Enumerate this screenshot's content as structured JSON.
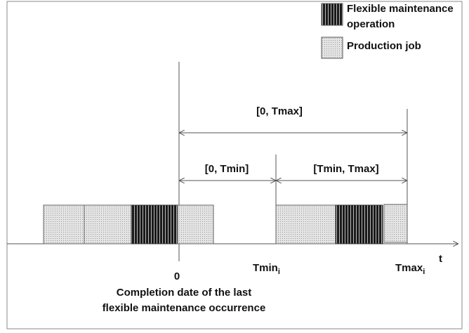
{
  "legend": [
    {
      "label_lines": [
        "Flexible maintenance",
        "operation"
      ]
    },
    {
      "label": "Production job"
    }
  ],
  "intervals": [
    "[0, Tmax]",
    "[0, Tmin]",
    "[Tmin, Tmax]"
  ],
  "axis": {
    "label": "t",
    "origin": "0",
    "tmin": {
      "text": "Tmin",
      "subscript": "i"
    },
    "tmax": {
      "text": "Tmax",
      "subscript": "i"
    }
  },
  "caption_lines": [
    "Completion date of the last",
    "flexible maintenance occurrence"
  ]
}
